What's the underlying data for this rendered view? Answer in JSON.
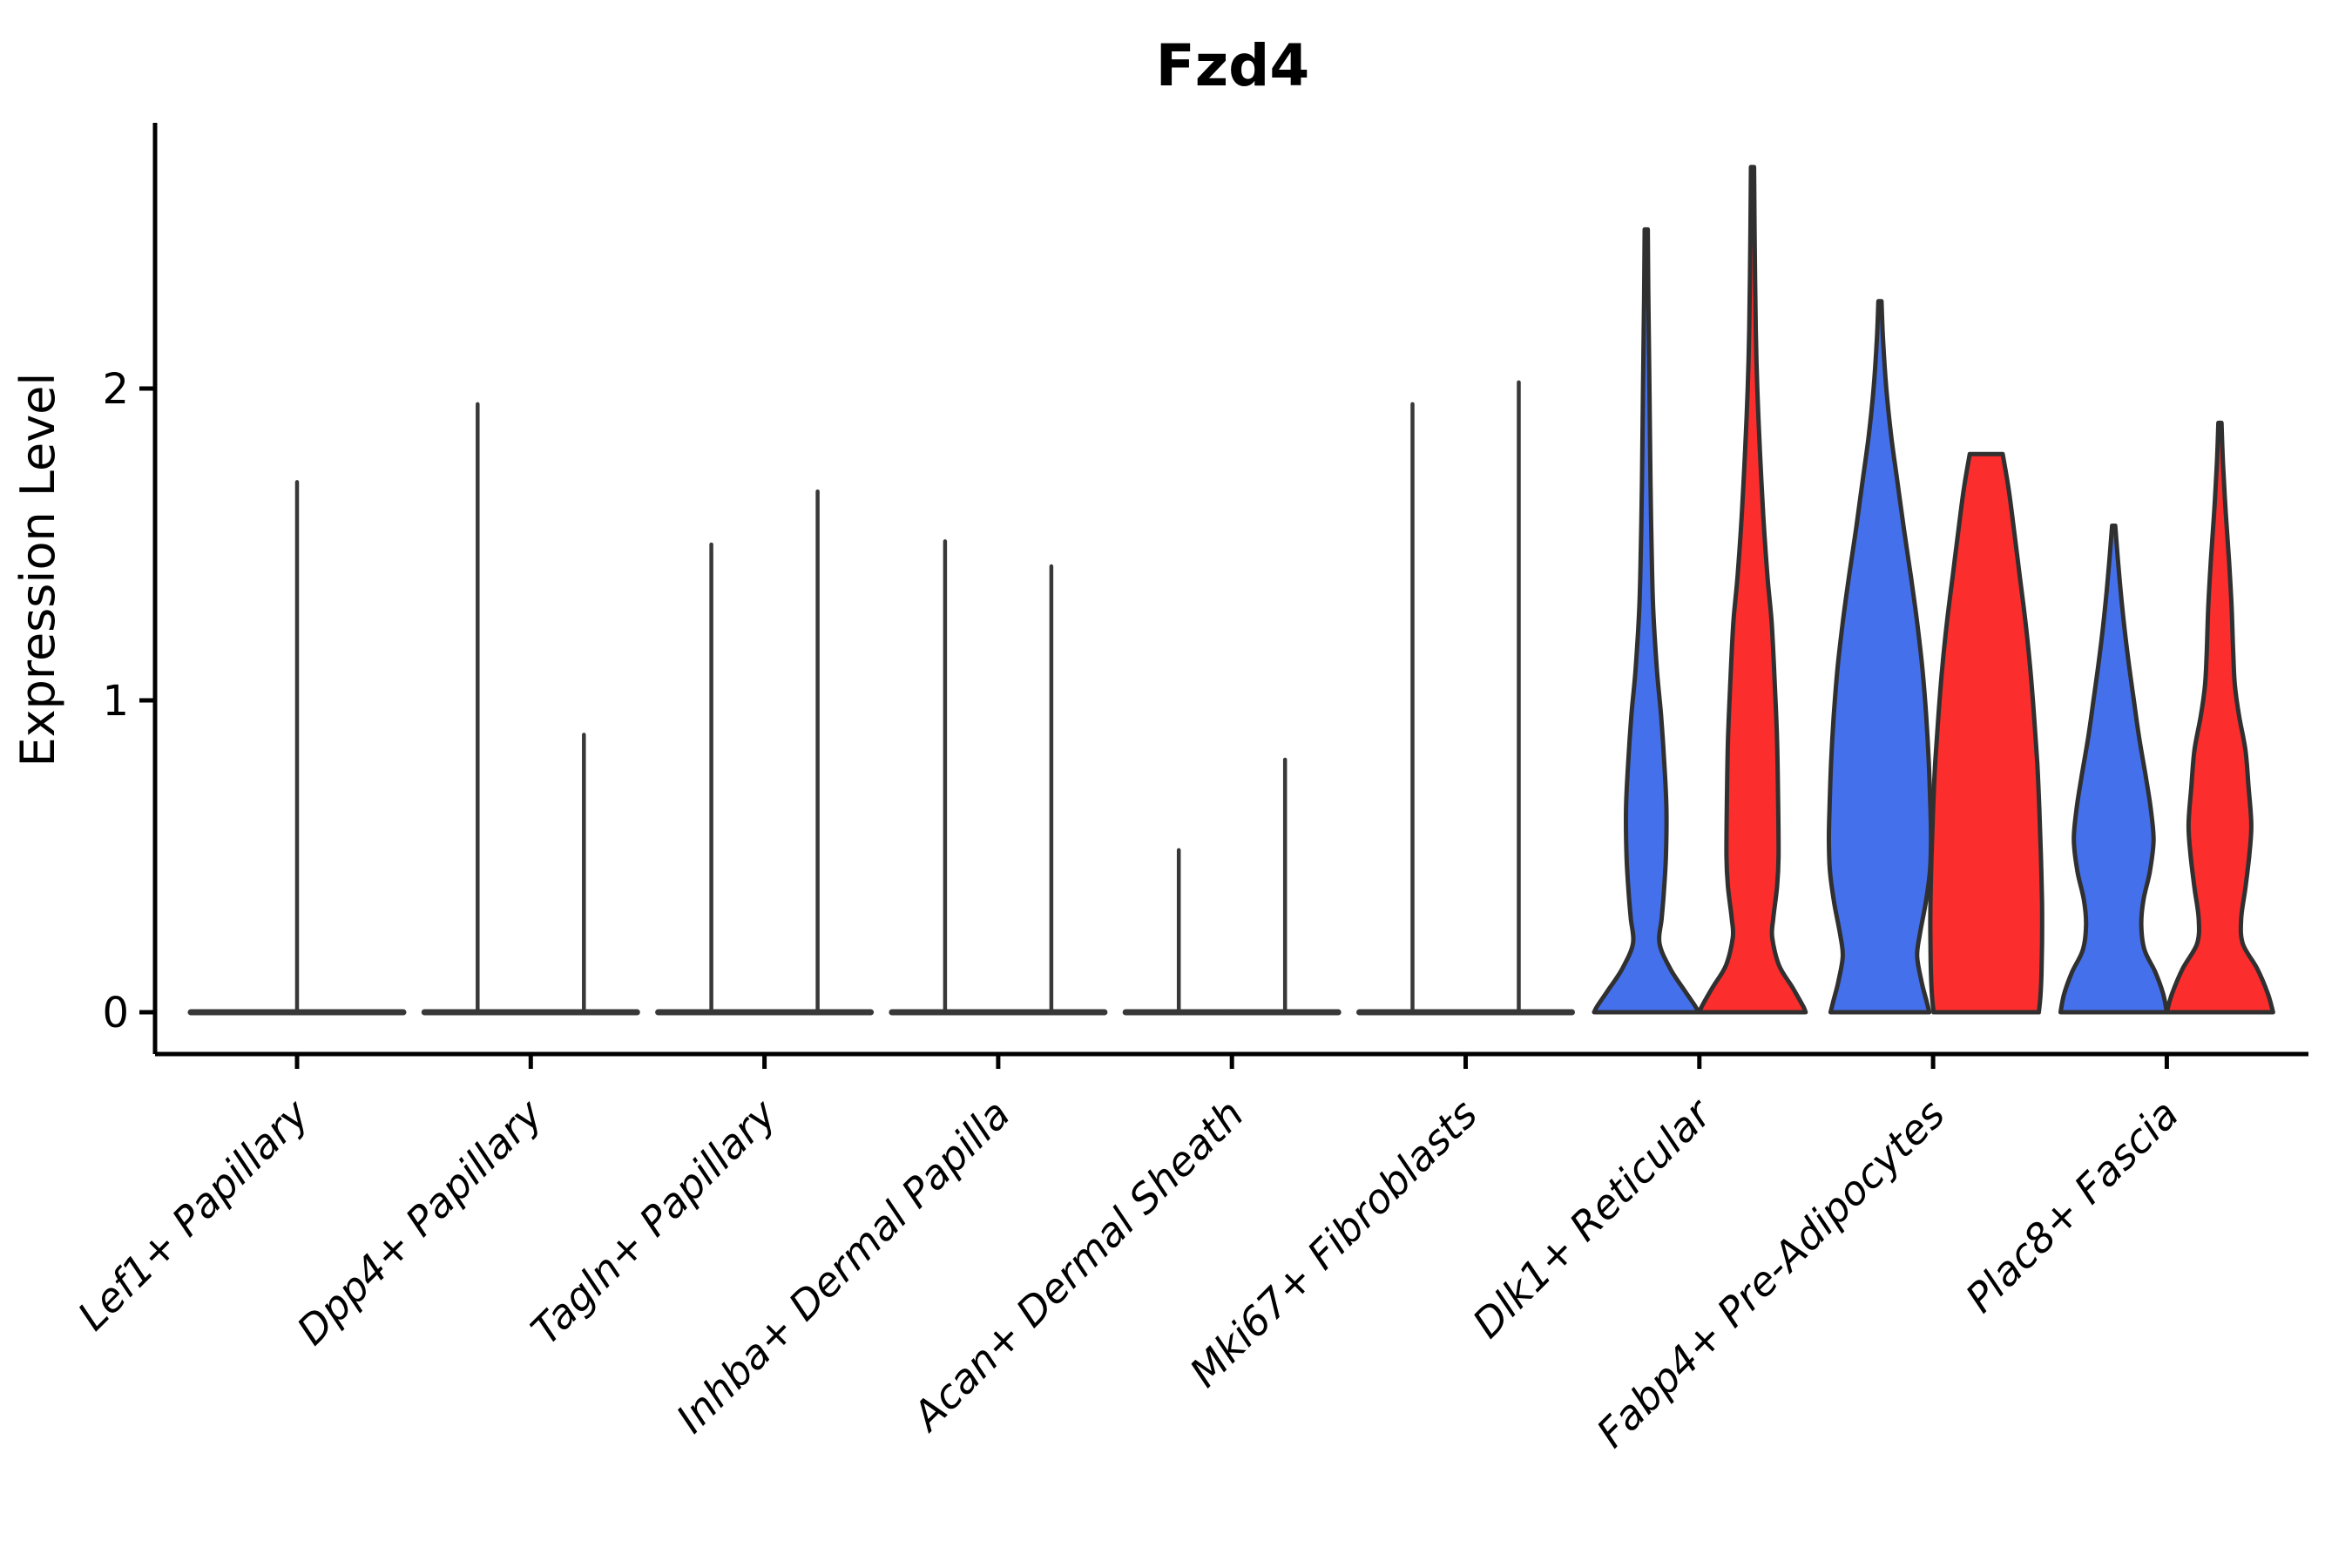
{
  "title": "Fzd4",
  "chart_data": {
    "type": "violin",
    "title": "Fzd4",
    "xlabel": "",
    "ylabel": "Expression Level",
    "ylim": [
      0,
      2.85
    ],
    "y_ticks": [
      0,
      1,
      2
    ],
    "x_tick_angle": 45,
    "legend_position": "none",
    "grid": false,
    "colors": {
      "blue": "#4470EC",
      "red": "#FB2D2D",
      "outline": "#303030",
      "collapsed": "#383838",
      "axis": "#000000",
      "background": "#FFFFFF"
    },
    "categories": [
      {
        "label": "Lef1+ Papillary",
        "violins": [
          {
            "group": "single",
            "style": "collapsed",
            "color_key": "collapsed",
            "max_expression": 1.7,
            "width_units": 2
          }
        ]
      },
      {
        "label": "Dpp4+ Papillary",
        "violins": [
          {
            "group": "g1",
            "style": "collapsed",
            "color_key": "collapsed",
            "max_expression": 1.95,
            "width_units": 1
          },
          {
            "group": "g2",
            "style": "collapsed",
            "color_key": "collapsed",
            "max_expression": 0.89,
            "width_units": 1
          }
        ]
      },
      {
        "label": "Tagln+ Papillary",
        "violins": [
          {
            "group": "g1",
            "style": "collapsed",
            "color_key": "collapsed",
            "max_expression": 1.5,
            "width_units": 1
          },
          {
            "group": "g2",
            "style": "collapsed",
            "color_key": "collapsed",
            "max_expression": 1.67,
            "width_units": 1
          }
        ]
      },
      {
        "label": "Inhba+ Dermal Papilla",
        "violins": [
          {
            "group": "g1",
            "style": "collapsed",
            "color_key": "collapsed",
            "max_expression": 1.51,
            "width_units": 1
          },
          {
            "group": "g2",
            "style": "collapsed",
            "color_key": "collapsed",
            "max_expression": 1.43,
            "width_units": 1
          }
        ]
      },
      {
        "label": "Acan+ Dermal Sheath",
        "violins": [
          {
            "group": "g1",
            "style": "collapsed",
            "color_key": "collapsed",
            "max_expression": 0.52,
            "width_units": 1
          },
          {
            "group": "g2",
            "style": "collapsed",
            "color_key": "collapsed",
            "max_expression": 0.81,
            "width_units": 1
          }
        ]
      },
      {
        "label": "Mki67+ Fibroblasts",
        "violins": [
          {
            "group": "g1",
            "style": "collapsed",
            "color_key": "collapsed",
            "max_expression": 1.95,
            "width_units": 1
          },
          {
            "group": "g2",
            "style": "collapsed",
            "color_key": "collapsed",
            "max_expression": 2.02,
            "width_units": 1
          }
        ]
      },
      {
        "label": "Dlk1+ Reticular",
        "violins": [
          {
            "group": "g1",
            "style": "filled",
            "color_key": "blue",
            "max_expression": 2.51,
            "width_units": 1,
            "profile": [
              [
                2.51,
                0.03
              ],
              [
                2.3,
                0.04
              ],
              [
                2.0,
                0.06
              ],
              [
                1.7,
                0.08
              ],
              [
                1.5,
                0.1
              ],
              [
                1.3,
                0.13
              ],
              [
                1.1,
                0.2
              ],
              [
                0.95,
                0.28
              ],
              [
                0.8,
                0.34
              ],
              [
                0.65,
                0.38
              ],
              [
                0.5,
                0.37
              ],
              [
                0.38,
                0.33
              ],
              [
                0.3,
                0.29
              ],
              [
                0.22,
                0.25
              ],
              [
                0.14,
                0.45
              ],
              [
                0.07,
                0.72
              ],
              [
                0.02,
                0.92
              ],
              [
                0,
                0.98
              ]
            ]
          },
          {
            "group": "g2",
            "style": "filled",
            "color_key": "red",
            "max_expression": 2.71,
            "width_units": 1,
            "profile": [
              [
                2.71,
                0.03
              ],
              [
                2.5,
                0.04
              ],
              [
                2.2,
                0.06
              ],
              [
                2.0,
                0.09
              ],
              [
                1.8,
                0.14
              ],
              [
                1.6,
                0.2
              ],
              [
                1.4,
                0.28
              ],
              [
                1.25,
                0.36
              ],
              [
                1.05,
                0.42
              ],
              [
                0.88,
                0.46
              ],
              [
                0.7,
                0.48
              ],
              [
                0.5,
                0.49
              ],
              [
                0.4,
                0.46
              ],
              [
                0.3,
                0.39
              ],
              [
                0.24,
                0.37
              ],
              [
                0.15,
                0.5
              ],
              [
                0.08,
                0.75
              ],
              [
                0.02,
                0.95
              ],
              [
                0,
                1.0
              ]
            ]
          }
        ]
      },
      {
        "label": "Fabp4+ Pre-Adipocytes",
        "violins": [
          {
            "group": "g1",
            "style": "filled",
            "color_key": "blue",
            "max_expression": 2.28,
            "width_units": 1,
            "profile": [
              [
                2.28,
                0.03
              ],
              [
                2.15,
                0.06
              ],
              [
                2.0,
                0.12
              ],
              [
                1.85,
                0.21
              ],
              [
                1.7,
                0.33
              ],
              [
                1.55,
                0.45
              ],
              [
                1.4,
                0.58
              ],
              [
                1.25,
                0.7
              ],
              [
                1.1,
                0.8
              ],
              [
                0.95,
                0.87
              ],
              [
                0.8,
                0.92
              ],
              [
                0.65,
                0.95
              ],
              [
                0.55,
                0.96
              ],
              [
                0.45,
                0.94
              ],
              [
                0.35,
                0.86
              ],
              [
                0.25,
                0.75
              ],
              [
                0.18,
                0.7
              ],
              [
                0.1,
                0.78
              ],
              [
                0.04,
                0.87
              ],
              [
                0,
                0.93
              ]
            ]
          },
          {
            "group": "g2",
            "style": "filled",
            "color_key": "red",
            "max_expression": 1.79,
            "truncated_top": true,
            "width_units": 1,
            "profile": [
              [
                1.79,
                0.31
              ],
              [
                1.68,
                0.42
              ],
              [
                1.55,
                0.52
              ],
              [
                1.4,
                0.63
              ],
              [
                1.25,
                0.74
              ],
              [
                1.1,
                0.83
              ],
              [
                0.95,
                0.9
              ],
              [
                0.8,
                0.96
              ],
              [
                0.65,
                1.0
              ],
              [
                0.5,
                1.03
              ],
              [
                0.35,
                1.05
              ],
              [
                0.22,
                1.05
              ],
              [
                0.12,
                1.04
              ],
              [
                0.05,
                1.02
              ],
              [
                0,
                0.99
              ]
            ]
          }
        ]
      },
      {
        "label": "Plac8+ Fascia",
        "violins": [
          {
            "group": "g1",
            "style": "filled",
            "color_key": "blue",
            "max_expression": 1.56,
            "width_units": 1,
            "profile": [
              [
                1.56,
                0.03
              ],
              [
                1.45,
                0.08
              ],
              [
                1.3,
                0.16
              ],
              [
                1.15,
                0.26
              ],
              [
                1.0,
                0.38
              ],
              [
                0.88,
                0.48
              ],
              [
                0.75,
                0.61
              ],
              [
                0.65,
                0.7
              ],
              [
                0.55,
                0.75
              ],
              [
                0.45,
                0.68
              ],
              [
                0.36,
                0.56
              ],
              [
                0.28,
                0.52
              ],
              [
                0.2,
                0.58
              ],
              [
                0.13,
                0.78
              ],
              [
                0.06,
                0.93
              ],
              [
                0,
                1.0
              ]
            ]
          },
          {
            "group": "g2",
            "style": "filled",
            "color_key": "red",
            "max_expression": 1.89,
            "width_units": 1,
            "profile": [
              [
                1.89,
                0.03
              ],
              [
                1.75,
                0.06
              ],
              [
                1.6,
                0.11
              ],
              [
                1.45,
                0.17
              ],
              [
                1.3,
                0.22
              ],
              [
                1.15,
                0.25
              ],
              [
                1.05,
                0.28
              ],
              [
                0.95,
                0.36
              ],
              [
                0.84,
                0.48
              ],
              [
                0.72,
                0.54
              ],
              [
                0.6,
                0.59
              ],
              [
                0.5,
                0.55
              ],
              [
                0.4,
                0.48
              ],
              [
                0.3,
                0.4
              ],
              [
                0.22,
                0.43
              ],
              [
                0.14,
                0.7
              ],
              [
                0.06,
                0.9
              ],
              [
                0,
                1.0
              ]
            ]
          }
        ]
      }
    ]
  }
}
